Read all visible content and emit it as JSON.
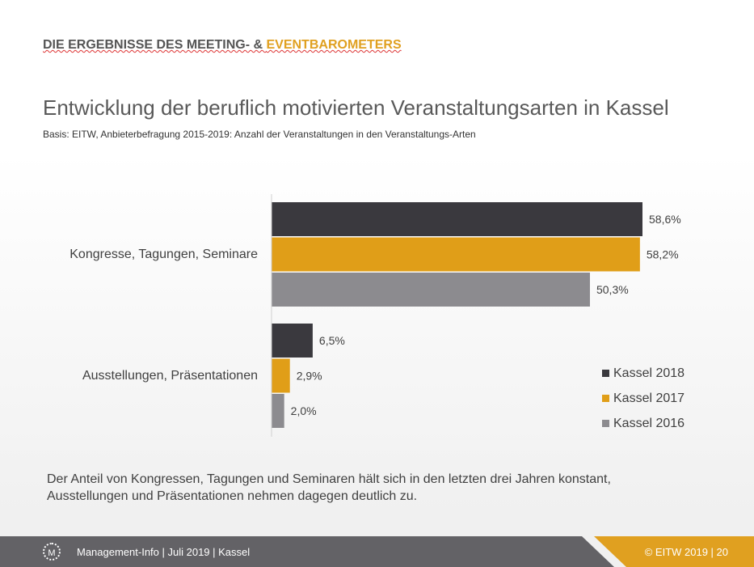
{
  "header": {
    "part1": "DIE ERGEBNISSE DES MEETING- & ",
    "part2": "EVENTBAROMETERS"
  },
  "chart_data": {
    "type": "bar",
    "orientation": "horizontal",
    "title": "Entwicklung der beruflich motivierten Veranstaltungsarten in Kassel",
    "subtitle": "Basis: EITW, Anbieterbefragung 2015-2019: Anzahl der Veranstaltungen in den Veranstaltungs-Arten",
    "categories": [
      "Kongresse, Tagungen, Seminare",
      "Ausstellungen, Präsentationen"
    ],
    "series": [
      {
        "name": "Kassel 2018",
        "color": "#3a393e",
        "values": [
          58.6,
          6.5
        ],
        "labels": [
          "58,6%",
          "6,5%"
        ]
      },
      {
        "name": "Kassel 2017",
        "color": "#e09e18",
        "values": [
          58.2,
          2.9
        ],
        "labels": [
          "58,2%",
          "2,9%"
        ]
      },
      {
        "name": "Kassel 2016",
        "color": "#8c8b8f",
        "values": [
          50.3,
          2.0
        ],
        "labels": [
          "50,3%",
          "2,0%"
        ]
      }
    ],
    "legend": "right",
    "grid": false
  },
  "note": [
    "Der Anteil von Kongressen, Tagungen und Seminaren hält sich in den letzten drei Jahren konstant,",
    "Ausstellungen und Präsentationen nehmen dagegen deutlich zu."
  ],
  "footer": {
    "logo": "M",
    "left": "Management-Info | Juli 2019 | Kassel",
    "right": "© EITW 2019  |  20",
    "colors": {
      "dark": "#636266",
      "accent": "#e0a020"
    }
  }
}
